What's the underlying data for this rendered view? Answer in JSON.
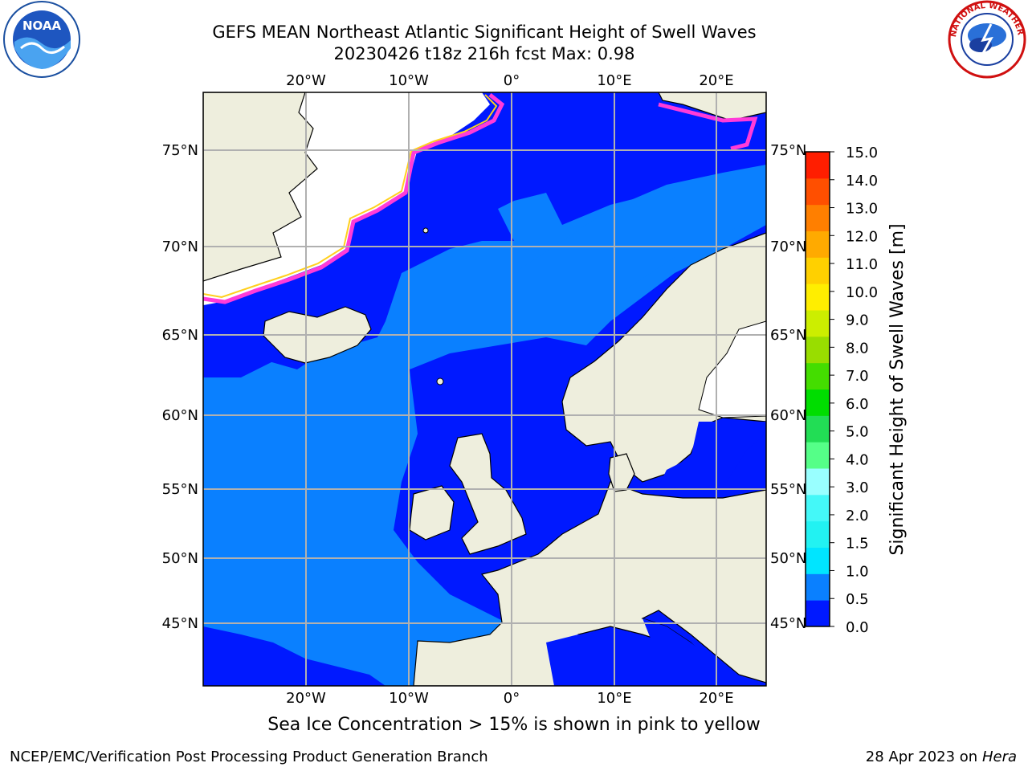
{
  "title": {
    "line1": "GEFS MEAN Northeast Atlantic Significant Height of Swell Waves",
    "line2": "20230426 t18z 216h fcst   Max: 0.98"
  },
  "map": {
    "lon_range": [
      -30,
      25
    ],
    "lat_range": [
      41,
      78
    ],
    "lon_ticks_top": [
      "20°W",
      "10°W",
      "0°",
      "10°E",
      "20°E"
    ],
    "lon_ticks_bottom": [
      "20°W",
      "10°W",
      "0°",
      "10°E",
      "20°E"
    ],
    "lat_ticks": [
      "75°N",
      "70°N",
      "65°N",
      "60°N",
      "55°N",
      "50°N",
      "45°N"
    ],
    "colors": {
      "ocean_low": "#0016ff",
      "ocean_mid": "#0a7dff",
      "land": "#eeeedd",
      "ice": "#ffffff",
      "ice_edge_pink": "#ff3bd9",
      "ice_edge_yellow": "#ffd01e",
      "grid": "#b0b0b0"
    }
  },
  "colorbar": {
    "label": "Significant Height of Swell Waves [m]",
    "ticks": [
      "0.0",
      "0.5",
      "1.0",
      "1.5",
      "2.0",
      "3.0",
      "4.0",
      "5.0",
      "6.0",
      "7.0",
      "8.0",
      "9.0",
      "10.0",
      "11.0",
      "12.0",
      "13.0",
      "14.0",
      "15.0"
    ],
    "colors": [
      "#0019ff",
      "#0a80ff",
      "#00e5ff",
      "#22f2f2",
      "#44f8f8",
      "#99ffff",
      "#55ff88",
      "#22dd55",
      "#00dd00",
      "#44dd00",
      "#99dd00",
      "#ccee00",
      "#ffee00",
      "#ffd000",
      "#ffaa00",
      "#ff7f00",
      "#ff4f00",
      "#ff1e00"
    ]
  },
  "captions": {
    "seaice": "Sea Ice Concentration > 15% is shown in pink to yellow",
    "footer_left": "NCEP/EMC/Verification Post Processing Product Generation Branch",
    "footer_date": "28 Apr 2023 on ",
    "footer_machine": "Hera"
  },
  "logos": {
    "noaa": "NOAA",
    "nws": "NATIONAL WEATHER SERVICE"
  }
}
